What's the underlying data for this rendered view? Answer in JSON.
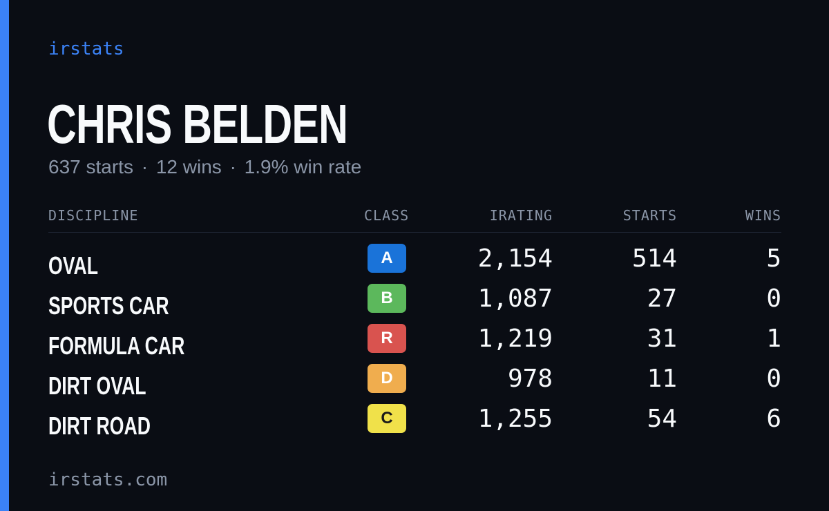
{
  "brand": "irstats",
  "driver": {
    "name": "CHRIS BELDEN",
    "starts_text": "637 starts",
    "wins_text": "12 wins",
    "win_rate_text": "1.9% win rate",
    "separator": "·"
  },
  "table": {
    "headers": {
      "discipline": "DISCIPLINE",
      "class": "CLASS",
      "irating": "IRATING",
      "starts": "STARTS",
      "wins": "WINS"
    },
    "rows": [
      {
        "discipline": "OVAL",
        "class": "A",
        "class_color": "#1a73d9",
        "class_text_color": "#ffffff",
        "irating": "2,154",
        "starts": "514",
        "wins": "5"
      },
      {
        "discipline": "SPORTS CAR",
        "class": "B",
        "class_color": "#5cb85c",
        "class_text_color": "#ffffff",
        "irating": "1,087",
        "starts": "27",
        "wins": "0"
      },
      {
        "discipline": "FORMULA CAR",
        "class": "R",
        "class_color": "#d9534f",
        "class_text_color": "#ffffff",
        "irating": "1,219",
        "starts": "31",
        "wins": "1"
      },
      {
        "discipline": "DIRT OVAL",
        "class": "D",
        "class_color": "#f0ad4e",
        "class_text_color": "#ffffff",
        "irating": "978",
        "starts": "11",
        "wins": "0"
      },
      {
        "discipline": "DIRT ROAD",
        "class": "C",
        "class_color": "#f0e14a",
        "class_text_color": "#1a1a1a",
        "irating": "1,255",
        "starts": "54",
        "wins": "6"
      }
    ]
  },
  "footer": "irstats.com",
  "colors": {
    "accent": "#3b82f6",
    "background": "#0a0d14",
    "muted": "#8b96a8"
  }
}
